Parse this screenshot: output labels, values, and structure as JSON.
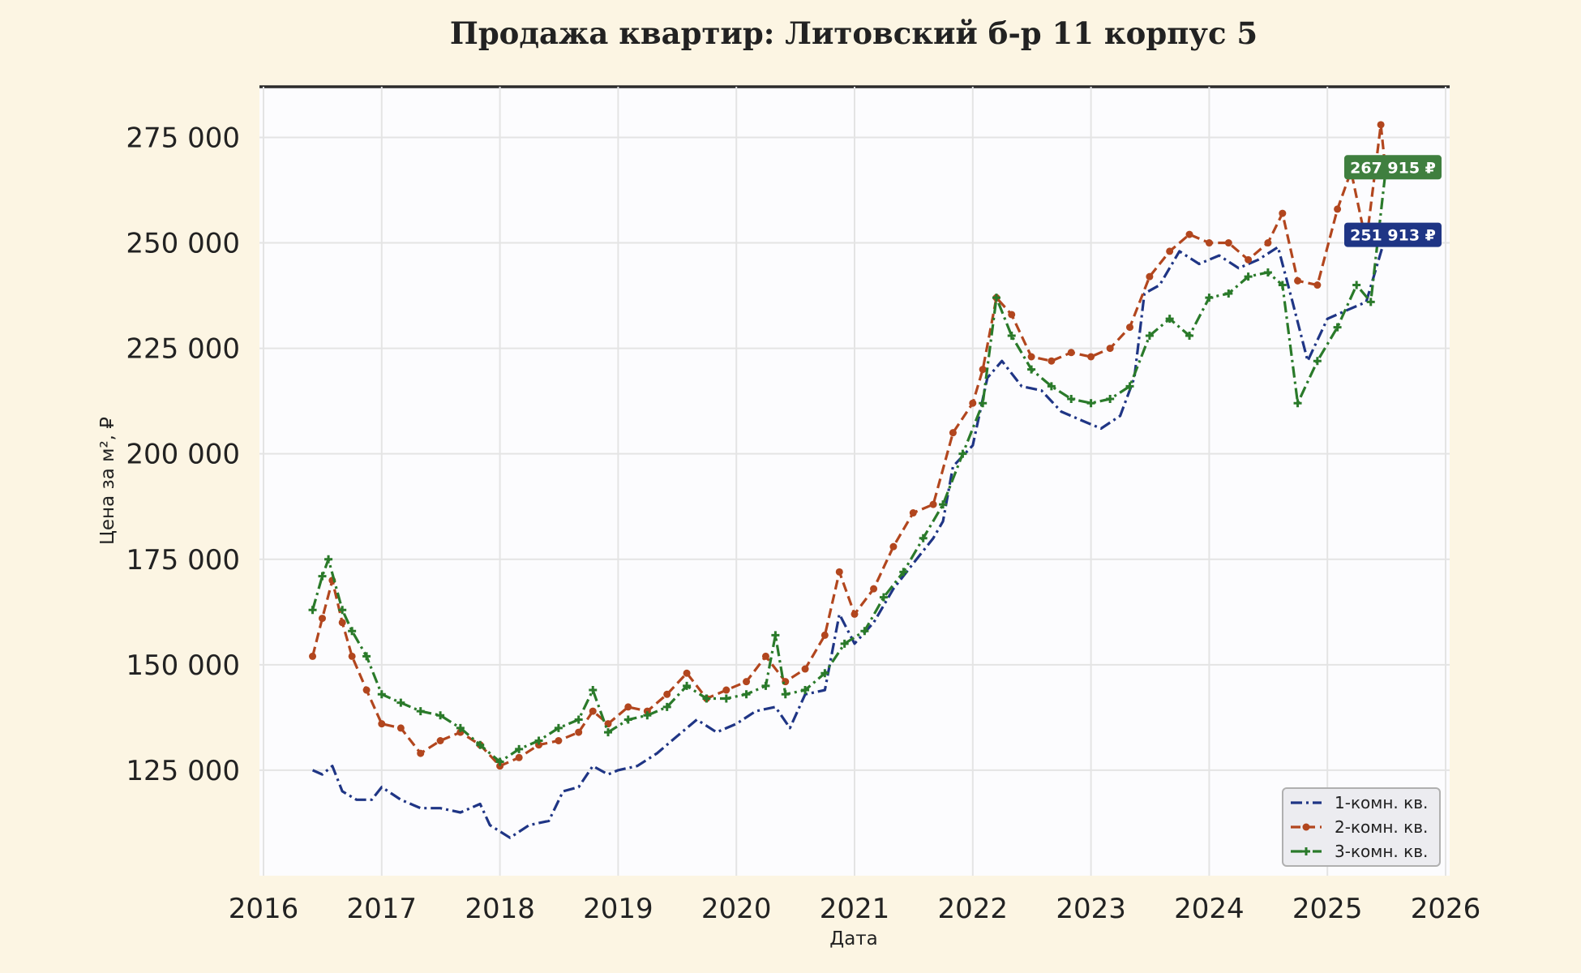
{
  "chart_data": {
    "type": "line",
    "title": "Продажа квартир: Литовский б-р 11 корпус 5",
    "xlabel": "Дата",
    "ylabel": "Цена за м², ₽",
    "x_ticks": [
      "2016",
      "2017",
      "2018",
      "2019",
      "2020",
      "2021",
      "2022",
      "2023",
      "2024",
      "2025",
      "2026"
    ],
    "y_ticks": [
      "125 000",
      "150 000",
      "175 000",
      "200 000",
      "225 000",
      "250 000",
      "275 000"
    ],
    "xlim": [
      "2016-01-01",
      "2026-01-01"
    ],
    "ylim": [
      100000,
      287000
    ],
    "grid": true,
    "legend_position": "bottom-right",
    "series": [
      {
        "name": "1-комн. кв.",
        "color": "#1f3585",
        "line_style": "dash-dot",
        "marker": "none",
        "points": [
          [
            "2016-06-01",
            125000
          ],
          [
            "2016-07-01",
            124000
          ],
          [
            "2016-08-01",
            126000
          ],
          [
            "2016-09-01",
            120000
          ],
          [
            "2016-10-15",
            118000
          ],
          [
            "2016-12-01",
            118000
          ],
          [
            "2017-01-01",
            121000
          ],
          [
            "2017-03-01",
            118000
          ],
          [
            "2017-05-01",
            116000
          ],
          [
            "2017-07-01",
            116000
          ],
          [
            "2017-09-01",
            115000
          ],
          [
            "2017-11-01",
            117000
          ],
          [
            "2017-12-01",
            112000
          ],
          [
            "2018-02-01",
            109000
          ],
          [
            "2018-04-01",
            112000
          ],
          [
            "2018-06-01",
            113000
          ],
          [
            "2018-07-15",
            120000
          ],
          [
            "2018-09-01",
            121000
          ],
          [
            "2018-10-15",
            126000
          ],
          [
            "2018-12-01",
            124000
          ],
          [
            "2019-01-01",
            125000
          ],
          [
            "2019-03-01",
            126000
          ],
          [
            "2019-05-01",
            129000
          ],
          [
            "2019-07-01",
            133000
          ],
          [
            "2019-09-01",
            137000
          ],
          [
            "2019-11-01",
            134000
          ],
          [
            "2020-01-01",
            136000
          ],
          [
            "2020-03-01",
            139000
          ],
          [
            "2020-05-01",
            140000
          ],
          [
            "2020-06-15",
            135000
          ],
          [
            "2020-08-01",
            143000
          ],
          [
            "2020-10-01",
            144000
          ],
          [
            "2020-11-15",
            162000
          ],
          [
            "2021-01-01",
            155000
          ],
          [
            "2021-03-01",
            160000
          ],
          [
            "2021-05-01",
            168000
          ],
          [
            "2021-07-01",
            174000
          ],
          [
            "2021-09-01",
            180000
          ],
          [
            "2021-10-01",
            184000
          ],
          [
            "2021-11-01",
            197000
          ],
          [
            "2022-01-01",
            202000
          ],
          [
            "2022-02-15",
            218000
          ],
          [
            "2022-04-01",
            222000
          ],
          [
            "2022-06-01",
            216000
          ],
          [
            "2022-08-01",
            215000
          ],
          [
            "2022-10-01",
            210000
          ],
          [
            "2022-12-01",
            208000
          ],
          [
            "2023-02-01",
            206000
          ],
          [
            "2023-04-01",
            209000
          ],
          [
            "2023-05-15",
            218000
          ],
          [
            "2023-06-15",
            238000
          ],
          [
            "2023-08-01",
            240000
          ],
          [
            "2023-10-01",
            248000
          ],
          [
            "2023-12-01",
            245000
          ],
          [
            "2024-02-01",
            247000
          ],
          [
            "2024-04-01",
            244000
          ],
          [
            "2024-06-01",
            246000
          ],
          [
            "2024-08-01",
            249000
          ],
          [
            "2024-09-15",
            236000
          ],
          [
            "2024-11-01",
            222000
          ],
          [
            "2025-01-01",
            232000
          ],
          [
            "2025-03-01",
            234000
          ],
          [
            "2025-05-01",
            236000
          ],
          [
            "2025-07-01",
            251913
          ]
        ]
      },
      {
        "name": "2-комн. кв.",
        "color": "#b2461e",
        "line_style": "dashed",
        "marker": "circle",
        "points": [
          [
            "2016-06-01",
            152000
          ],
          [
            "2016-07-01",
            161000
          ],
          [
            "2016-08-01",
            170000
          ],
          [
            "2016-09-01",
            160000
          ],
          [
            "2016-10-01",
            152000
          ],
          [
            "2016-11-15",
            144000
          ],
          [
            "2017-01-01",
            136000
          ],
          [
            "2017-03-01",
            135000
          ],
          [
            "2017-05-01",
            129000
          ],
          [
            "2017-07-01",
            132000
          ],
          [
            "2017-09-01",
            134000
          ],
          [
            "2017-11-01",
            131000
          ],
          [
            "2018-01-01",
            126000
          ],
          [
            "2018-03-01",
            128000
          ],
          [
            "2018-05-01",
            131000
          ],
          [
            "2018-07-01",
            132000
          ],
          [
            "2018-09-01",
            134000
          ],
          [
            "2018-10-15",
            139000
          ],
          [
            "2018-12-01",
            136000
          ],
          [
            "2019-02-01",
            140000
          ],
          [
            "2019-04-01",
            139000
          ],
          [
            "2019-06-01",
            143000
          ],
          [
            "2019-08-01",
            148000
          ],
          [
            "2019-10-01",
            142000
          ],
          [
            "2019-12-01",
            144000
          ],
          [
            "2020-02-01",
            146000
          ],
          [
            "2020-04-01",
            152000
          ],
          [
            "2020-06-01",
            146000
          ],
          [
            "2020-08-01",
            149000
          ],
          [
            "2020-10-01",
            157000
          ],
          [
            "2020-11-15",
            172000
          ],
          [
            "2021-01-01",
            162000
          ],
          [
            "2021-03-01",
            168000
          ],
          [
            "2021-05-01",
            178000
          ],
          [
            "2021-07-01",
            186000
          ],
          [
            "2021-09-01",
            188000
          ],
          [
            "2021-11-01",
            205000
          ],
          [
            "2022-01-01",
            212000
          ],
          [
            "2022-02-01",
            220000
          ],
          [
            "2022-03-15",
            237000
          ],
          [
            "2022-05-01",
            233000
          ],
          [
            "2022-07-01",
            223000
          ],
          [
            "2022-09-01",
            222000
          ],
          [
            "2022-11-01",
            224000
          ],
          [
            "2023-01-01",
            223000
          ],
          [
            "2023-03-01",
            225000
          ],
          [
            "2023-05-01",
            230000
          ],
          [
            "2023-07-01",
            242000
          ],
          [
            "2023-09-01",
            248000
          ],
          [
            "2023-11-01",
            252000
          ],
          [
            "2024-01-01",
            250000
          ],
          [
            "2024-03-01",
            250000
          ],
          [
            "2024-05-01",
            246000
          ],
          [
            "2024-07-01",
            250000
          ],
          [
            "2024-08-15",
            257000
          ],
          [
            "2024-10-01",
            241000
          ],
          [
            "2024-12-01",
            240000
          ],
          [
            "2025-02-01",
            258000
          ],
          [
            "2025-03-15",
            267000
          ],
          [
            "2025-05-01",
            250000
          ],
          [
            "2025-06-15",
            278000
          ],
          [
            "2025-07-01",
            266000
          ]
        ]
      },
      {
        "name": "3-комн. кв.",
        "color": "#2a7a2a",
        "line_style": "dash-dot",
        "marker": "plus",
        "points": [
          [
            "2016-06-01",
            163000
          ],
          [
            "2016-07-01",
            171000
          ],
          [
            "2016-07-20",
            175000
          ],
          [
            "2016-09-01",
            163000
          ],
          [
            "2016-10-01",
            158000
          ],
          [
            "2016-11-15",
            152000
          ],
          [
            "2017-01-01",
            143000
          ],
          [
            "2017-03-01",
            141000
          ],
          [
            "2017-05-01",
            139000
          ],
          [
            "2017-07-01",
            138000
          ],
          [
            "2017-09-01",
            135000
          ],
          [
            "2017-11-01",
            131000
          ],
          [
            "2018-01-01",
            127000
          ],
          [
            "2018-03-01",
            130000
          ],
          [
            "2018-05-01",
            132000
          ],
          [
            "2018-07-01",
            135000
          ],
          [
            "2018-09-01",
            137000
          ],
          [
            "2018-10-15",
            144000
          ],
          [
            "2018-12-01",
            134000
          ],
          [
            "2019-02-01",
            137000
          ],
          [
            "2019-04-01",
            138000
          ],
          [
            "2019-06-01",
            140000
          ],
          [
            "2019-08-01",
            145000
          ],
          [
            "2019-10-01",
            142000
          ],
          [
            "2019-12-01",
            142000
          ],
          [
            "2020-02-01",
            143000
          ],
          [
            "2020-04-01",
            145000
          ],
          [
            "2020-05-01",
            157000
          ],
          [
            "2020-06-01",
            143000
          ],
          [
            "2020-08-01",
            144000
          ],
          [
            "2020-10-01",
            148000
          ],
          [
            "2020-12-01",
            155000
          ],
          [
            "2021-02-01",
            158000
          ],
          [
            "2021-04-01",
            166000
          ],
          [
            "2021-06-01",
            172000
          ],
          [
            "2021-08-01",
            180000
          ],
          [
            "2021-10-01",
            188000
          ],
          [
            "2021-12-01",
            200000
          ],
          [
            "2022-02-01",
            212000
          ],
          [
            "2022-03-15",
            237000
          ],
          [
            "2022-05-01",
            228000
          ],
          [
            "2022-07-01",
            220000
          ],
          [
            "2022-09-01",
            216000
          ],
          [
            "2022-11-01",
            213000
          ],
          [
            "2023-01-01",
            212000
          ],
          [
            "2023-03-01",
            213000
          ],
          [
            "2023-05-01",
            216000
          ],
          [
            "2023-07-01",
            228000
          ],
          [
            "2023-09-01",
            232000
          ],
          [
            "2023-11-01",
            228000
          ],
          [
            "2024-01-01",
            237000
          ],
          [
            "2024-03-01",
            238000
          ],
          [
            "2024-05-01",
            242000
          ],
          [
            "2024-07-01",
            243000
          ],
          [
            "2024-08-15",
            240000
          ],
          [
            "2024-10-01",
            212000
          ],
          [
            "2024-12-01",
            222000
          ],
          [
            "2025-02-01",
            230000
          ],
          [
            "2025-04-01",
            240000
          ],
          [
            "2025-05-15",
            236000
          ],
          [
            "2025-07-01",
            267915
          ]
        ]
      }
    ],
    "annotations": [
      {
        "text": "267 915 ₽",
        "value": 267915,
        "color": "#3f7f3f"
      },
      {
        "text": "251 913 ₽",
        "value": 251913,
        "color": "#1f3585"
      }
    ]
  }
}
